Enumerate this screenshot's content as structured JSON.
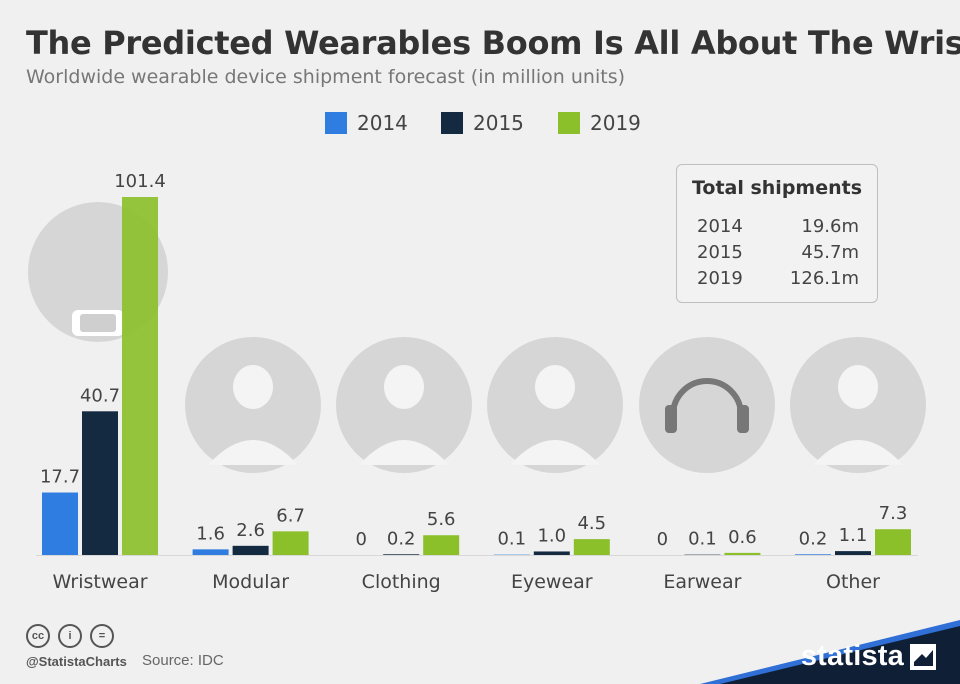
{
  "header": {
    "title": "The Predicted Wearables Boom Is All About The Wrist",
    "subtitle": "Worldwide wearable device shipment forecast (in million units)"
  },
  "colors": {
    "series_2014": "#2f7de1",
    "series_2015": "#142a40",
    "series_2019": "#8bc02b",
    "icon_circle": "#d6d6d6",
    "footer_accent": "#2f6fd6"
  },
  "icons": [
    "smartwatch-icon",
    "modular-device-icon",
    "smart-clothing-icon",
    "smart-glasses-icon",
    "headphones-icon",
    "hearing-device-icon"
  ],
  "chart_data": {
    "type": "bar",
    "title": "The Predicted Wearables Boom Is All About The Wrist",
    "subtitle": "Worldwide wearable device shipment forecast (in million units)",
    "categories": [
      "Wristwear",
      "Modular",
      "Clothing",
      "Eyewear",
      "Earwear",
      "Other"
    ],
    "series": [
      {
        "name": "2014",
        "values": [
          17.7,
          1.6,
          0,
          0.1,
          0,
          0.2
        ],
        "labels": [
          "17.7",
          "1.6",
          "0",
          "0.1",
          "0",
          "0.2"
        ]
      },
      {
        "name": "2015",
        "values": [
          40.7,
          2.6,
          0.2,
          1.0,
          0.1,
          1.1
        ],
        "labels": [
          "40.7",
          "2.6",
          "0.2",
          "1.0",
          "0.1",
          "1.1"
        ]
      },
      {
        "name": "2019",
        "values": [
          101.4,
          6.7,
          5.6,
          4.5,
          0.6,
          7.3
        ],
        "labels": [
          "101.4",
          "6.7",
          "5.6",
          "4.5",
          "0.6",
          "7.3"
        ]
      }
    ],
    "ylim": [
      0,
      101.4
    ],
    "grid": false,
    "legend": "top-center"
  },
  "totals": {
    "title": "Total shipments",
    "rows": [
      {
        "year": "2014",
        "value": "19.6m"
      },
      {
        "year": "2015",
        "value": "45.7m"
      },
      {
        "year": "2019",
        "value": "126.1m"
      }
    ]
  },
  "footer": {
    "credit": "@StatistaCharts",
    "source": "Source: IDC",
    "brand": "statista",
    "cc_icons": [
      "cc-icon",
      "by-icon",
      "nd-icon"
    ]
  }
}
